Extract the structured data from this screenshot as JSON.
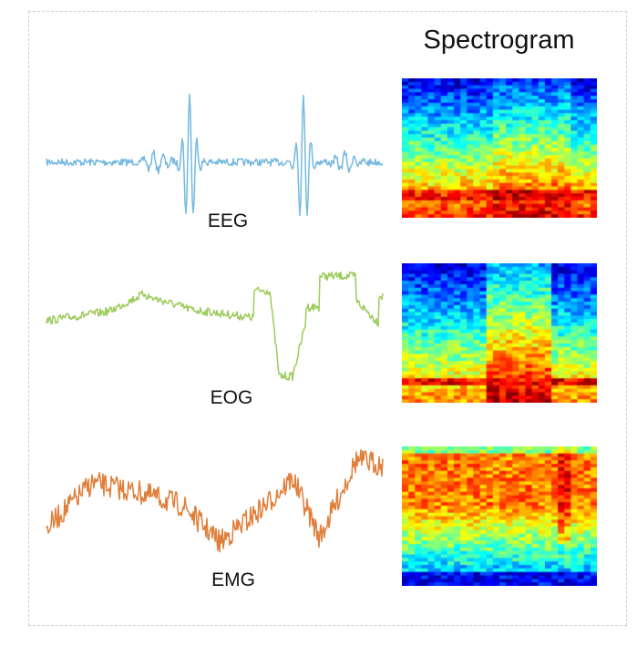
{
  "title": "Spectrogram",
  "signals": [
    {
      "label": "EEG",
      "color": "#74b9e0"
    },
    {
      "label": "EOG",
      "color": "#9dcb5a"
    },
    {
      "label": "EMG",
      "color": "#e07f3a"
    }
  ]
}
